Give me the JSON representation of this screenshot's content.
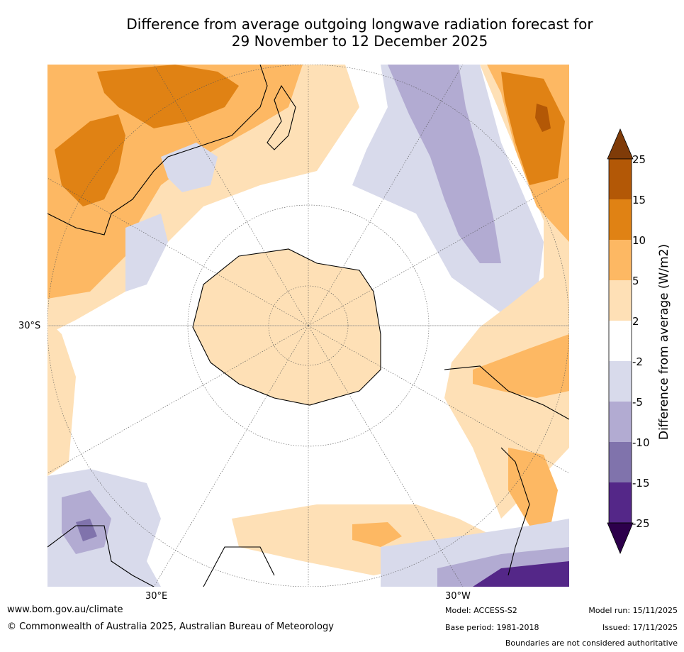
{
  "title_line1": "Difference from average outgoing longwave radiation forecast for",
  "title_line2": "29 November to 12 December 2025",
  "axis_labels": {
    "lat": "30°S",
    "lon_east": "30°E",
    "lon_west": "30°W"
  },
  "colorbar": {
    "label": "Difference from average (W/m2)",
    "ticks": [
      "25",
      "15",
      "10",
      "5",
      "2",
      "-2",
      "-5",
      "-10",
      "-15",
      "-25"
    ],
    "colors": {
      "gt25": "#7f3b08",
      "15_25": "#b35806",
      "10_15": "#e08214",
      "5_10": "#fdb863",
      "2_5": "#fee0b6",
      "m2_2": "#ffffff",
      "m5_m2": "#d8daeb",
      "m10_m5": "#b2abd2",
      "m15_m10": "#8073ac",
      "m25_m15": "#542788",
      "lt_m25": "#2d004b"
    }
  },
  "footer": {
    "url": "www.bom.gov.au/climate",
    "copyright": "© Commonwealth of Australia 2025, Australian Bureau of Meteorology",
    "model": "Model: ACCESS-S2",
    "base_period": "Base period: 1981-2018",
    "model_run": "Model run: 15/11/2025",
    "issued": "Issued: 17/11/2025",
    "disclaimer": "Boundaries are not considered authoritative"
  }
}
